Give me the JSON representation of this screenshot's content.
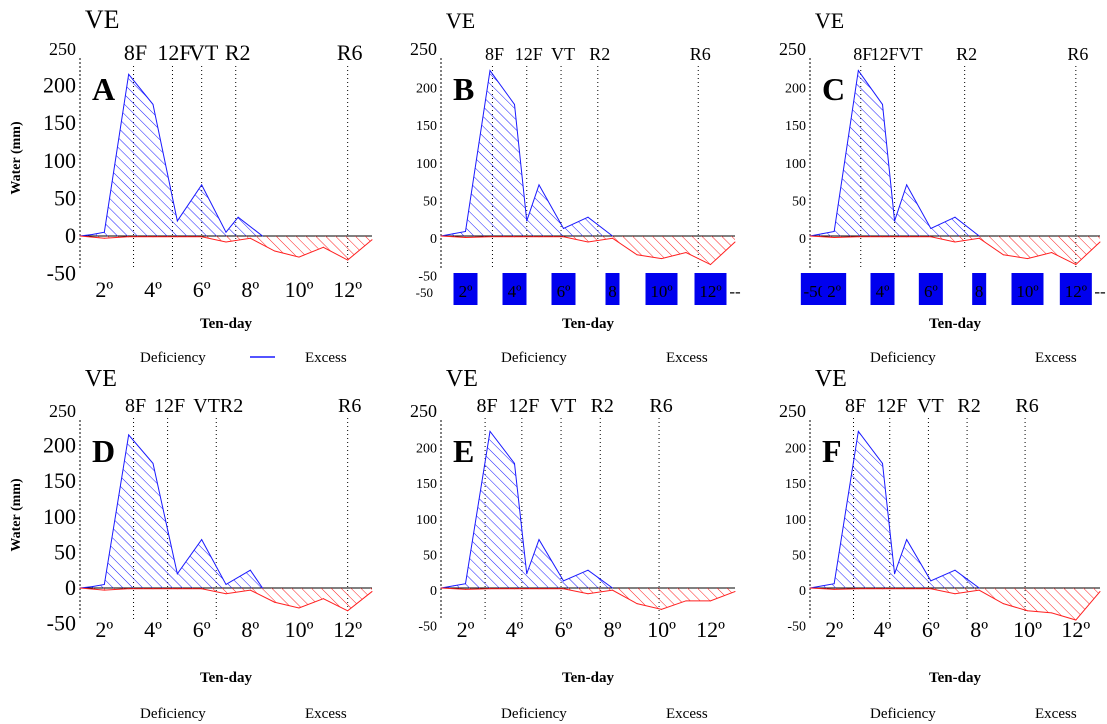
{
  "chart_data": [
    {
      "panel": "A",
      "type": "area",
      "stage_labels": [
        "VE",
        "8F",
        "12F",
        "VT",
        "R2",
        "R6"
      ],
      "ylabel": "Water (mm)",
      "xlabel": "Ten-day",
      "x_ticks": [
        "2º",
        "4º",
        "6º",
        "8º",
        "10º",
        "12º"
      ],
      "y_ticks": [
        "250",
        "200",
        "150",
        "100",
        "50",
        "0",
        "-50"
      ],
      "ylim": [
        -50,
        250
      ],
      "xlim": [
        1,
        13
      ],
      "legend": [
        "Deficiency",
        "Excess"
      ],
      "series": [
        {
          "name": "Excess",
          "color": "#1a1aff",
          "x": [
            1,
            1.5,
            2,
            3,
            4,
            5,
            6,
            7,
            7.5,
            8.5
          ],
          "values": [
            0,
            2,
            5,
            215,
            175,
            20,
            68,
            5,
            25,
            0
          ]
        },
        {
          "name": "Deficiency",
          "color": "#ff2020",
          "x": [
            1,
            2,
            3,
            4,
            5,
            6,
            7,
            8,
            9,
            10,
            11,
            12,
            13
          ],
          "values": [
            0,
            -3,
            -1,
            -1,
            -1,
            -1,
            -8,
            -3,
            -20,
            -28,
            -15,
            -32,
            -5
          ]
        }
      ]
    },
    {
      "panel": "B",
      "type": "area",
      "stage_labels": [
        "VE",
        "8F",
        "12F",
        "VT",
        "R2",
        "R6"
      ],
      "ylabel": "",
      "xlabel": "Ten-day",
      "x_ticks": [
        "2º",
        "4º",
        "6º",
        "8",
        "10º",
        "12º",
        "--"
      ],
      "y_ticks": [
        "250",
        "200",
        "150",
        "100",
        "50",
        "0",
        "-50"
      ],
      "ylim": [
        -50,
        250
      ],
      "xlim": [
        1,
        13
      ],
      "legend": [
        "Deficiency",
        "Excess"
      ],
      "series": [
        {
          "name": "Excess",
          "color": "#1a1aff",
          "x": [
            1,
            1.5,
            2,
            3,
            4,
            4.5,
            5,
            6,
            7,
            8
          ],
          "values": [
            0,
            3,
            6,
            220,
            175,
            20,
            68,
            10,
            25,
            0
          ]
        },
        {
          "name": "Deficiency",
          "color": "#ff2020",
          "x": [
            1,
            2,
            3,
            4,
            5,
            6,
            7,
            8,
            9,
            10,
            11,
            12,
            13
          ],
          "values": [
            0,
            -2,
            -1,
            -1,
            -1,
            -1,
            -8,
            -3,
            -25,
            -30,
            -22,
            -38,
            -8
          ]
        }
      ]
    },
    {
      "panel": "C",
      "type": "area",
      "stage_labels": [
        "VE",
        "8F",
        "12FVT",
        "R2",
        "R6"
      ],
      "ylabel": "",
      "xlabel": "Ten-day",
      "x_ticks": [
        "-50",
        "2º",
        "4º",
        "6º",
        "8",
        "10º",
        "12º",
        "--"
      ],
      "y_ticks": [
        "250",
        "200",
        "150",
        "100",
        "50",
        "0"
      ],
      "ylim": [
        -50,
        250
      ],
      "xlim": [
        1,
        13
      ],
      "legend": [
        "Deficiency",
        "Excess"
      ],
      "series": [
        {
          "name": "Excess",
          "color": "#1a1aff",
          "x": [
            1,
            1.5,
            2,
            3,
            4,
            4.5,
            5,
            6,
            7,
            8
          ],
          "values": [
            0,
            3,
            6,
            220,
            175,
            20,
            68,
            10,
            25,
            0
          ]
        },
        {
          "name": "Deficiency",
          "color": "#ff2020",
          "x": [
            1,
            2,
            3,
            4,
            5,
            6,
            7,
            8,
            9,
            10,
            11,
            12,
            13
          ],
          "values": [
            0,
            -2,
            -1,
            -1,
            -1,
            -1,
            -8,
            -3,
            -25,
            -30,
            -22,
            -38,
            -8
          ]
        }
      ]
    },
    {
      "panel": "D",
      "type": "area",
      "stage_labels": [
        "VE",
        "8F",
        "12F",
        "VTR2",
        "R6"
      ],
      "ylabel": "Water (mm)",
      "xlabel": "Ten-day",
      "x_ticks": [
        "2º",
        "4º",
        "6º",
        "8º",
        "10º",
        "12º"
      ],
      "y_ticks": [
        "250",
        "200",
        "150",
        "100",
        "50",
        "0",
        "-50"
      ],
      "ylim": [
        -50,
        250
      ],
      "xlim": [
        1,
        13
      ],
      "legend": [
        "Deficiency",
        "Excess"
      ],
      "series": [
        {
          "name": "Excess",
          "color": "#1a1aff",
          "x": [
            1,
            1.5,
            2,
            3,
            4,
            5,
            6,
            7,
            8,
            8.5
          ],
          "values": [
            0,
            2,
            5,
            215,
            175,
            20,
            68,
            5,
            25,
            0
          ]
        },
        {
          "name": "Deficiency",
          "color": "#ff2020",
          "x": [
            1,
            2,
            3,
            4,
            5,
            6,
            7,
            8,
            9,
            10,
            11,
            12,
            13
          ],
          "values": [
            0,
            -3,
            -1,
            -1,
            -1,
            -1,
            -8,
            -3,
            -20,
            -28,
            -15,
            -32,
            -5
          ]
        }
      ]
    },
    {
      "panel": "E",
      "type": "area",
      "stage_labels": [
        "VE",
        "8F",
        "12F",
        "VT",
        "R2",
        "R6"
      ],
      "ylabel": "",
      "xlabel": "Ten-day",
      "x_ticks": [
        "2º",
        "4º",
        "6º",
        "8º",
        "10º",
        "12º"
      ],
      "y_ticks": [
        "250",
        "200",
        "150",
        "100",
        "50",
        "0",
        "-50"
      ],
      "ylim": [
        -50,
        250
      ],
      "xlim": [
        1,
        13
      ],
      "legend": [
        "Deficiency",
        "Excess"
      ],
      "series": [
        {
          "name": "Excess",
          "color": "#1a1aff",
          "x": [
            1,
            1.5,
            2,
            3,
            4,
            4.5,
            5,
            6,
            7,
            8
          ],
          "values": [
            0,
            3,
            6,
            220,
            175,
            20,
            68,
            10,
            25,
            0
          ]
        },
        {
          "name": "Deficiency",
          "color": "#ff2020",
          "x": [
            1,
            2,
            3,
            4,
            5,
            6,
            7,
            8,
            9,
            10,
            11,
            12,
            13
          ],
          "values": [
            0,
            -2,
            -1,
            -1,
            -1,
            -1,
            -8,
            -3,
            -22,
            -30,
            -18,
            -18,
            -5
          ]
        }
      ]
    },
    {
      "panel": "F",
      "type": "area",
      "stage_labels": [
        "VE",
        "8F",
        "12F",
        "VT",
        "R2",
        "R6"
      ],
      "ylabel": "",
      "xlabel": "Ten-day",
      "x_ticks": [
        "2º",
        "4º",
        "6º",
        "8º",
        "10º",
        "12º"
      ],
      "y_ticks": [
        "250",
        "200",
        "150",
        "100",
        "50",
        "0",
        "-50"
      ],
      "ylim": [
        -50,
        250
      ],
      "xlim": [
        1,
        13
      ],
      "legend": [
        "Deficiency",
        "Excess"
      ],
      "series": [
        {
          "name": "Excess",
          "color": "#1a1aff",
          "x": [
            1,
            1.5,
            2,
            3,
            4,
            4.5,
            5,
            6,
            7,
            8
          ],
          "values": [
            0,
            3,
            6,
            220,
            175,
            20,
            68,
            10,
            25,
            0
          ]
        },
        {
          "name": "Deficiency",
          "color": "#ff2020",
          "x": [
            1,
            2,
            3,
            4,
            5,
            6,
            7,
            8,
            9,
            10,
            11,
            12,
            13
          ],
          "values": [
            0,
            -2,
            -1,
            -1,
            -1,
            -1,
            -8,
            -3,
            -22,
            -32,
            -35,
            -45,
            -5
          ]
        }
      ]
    }
  ]
}
